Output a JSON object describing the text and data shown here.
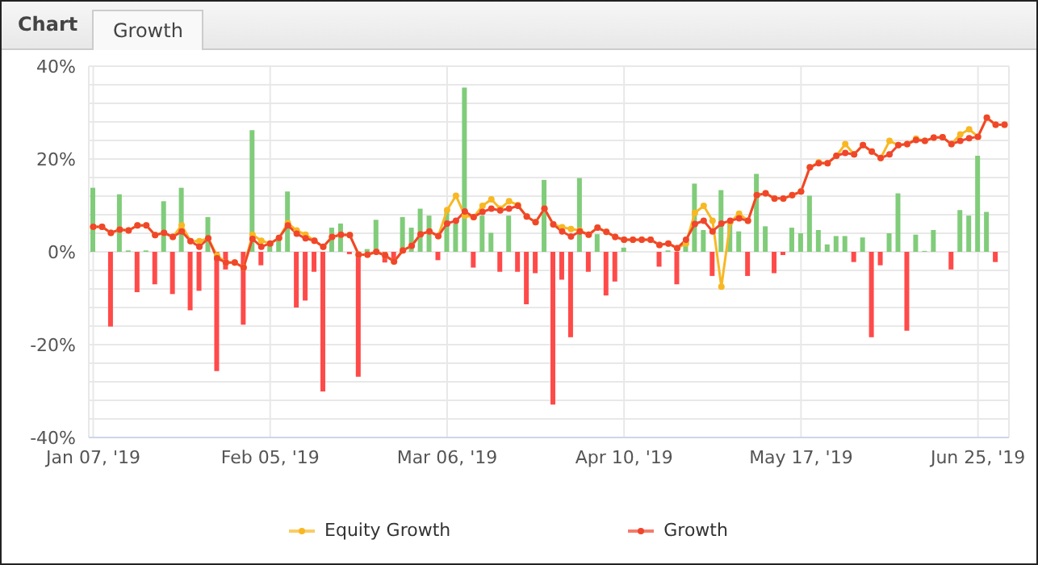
{
  "chart_data": {
    "type": "line",
    "title": "Chart",
    "subtitle": "Growth",
    "categories": [
      "Jan 07, '19",
      null,
      null,
      null,
      null,
      null,
      null,
      null,
      null,
      null,
      null,
      null,
      null,
      null,
      null,
      null,
      null,
      null,
      null,
      null,
      "Feb 05, '19",
      null,
      null,
      null,
      null,
      null,
      null,
      null,
      null,
      null,
      null,
      null,
      null,
      null,
      null,
      null,
      null,
      null,
      null,
      null,
      "Mar 06, '19",
      null,
      null,
      null,
      null,
      null,
      null,
      null,
      null,
      null,
      null,
      null,
      null,
      null,
      null,
      null,
      null,
      null,
      null,
      null,
      "Apr 10, '19",
      null,
      null,
      null,
      null,
      null,
      null,
      null,
      null,
      null,
      null,
      null,
      null,
      null,
      null,
      null,
      null,
      null,
      null,
      null,
      "May 17, '19",
      null,
      null,
      null,
      null,
      null,
      null,
      null,
      null,
      null,
      null,
      null,
      null,
      null,
      null,
      null,
      null,
      null,
      null,
      null,
      "Jun 25, '19",
      null,
      null,
      null
    ],
    "series": [
      {
        "type": "bar",
        "values": [
          13.8,
          null,
          -16.1,
          12.4,
          0.3,
          -8.7,
          0.3,
          -7.0,
          10.9,
          -9.1,
          13.8,
          -12.6,
          -8.4,
          7.5,
          -25.7,
          -3.8,
          null,
          -15.7,
          26.2,
          -2.9,
          1.8,
          2.6,
          13.0,
          -12.0,
          -10.5,
          -4.3,
          -30.1,
          5.2,
          6.1,
          -0.5,
          -26.9,
          0.6,
          6.9,
          -2.3,
          -1.7,
          7.5,
          5.2,
          9.3,
          7.8,
          -1.8,
          9.0,
          6.1,
          35.4,
          -3.4,
          7.8,
          4.1,
          -4.3,
          7.8,
          -4.3,
          -11.3,
          -4.6,
          15.5,
          -32.9,
          -6.0,
          -18.4,
          15.9,
          -4.3,
          3.8,
          -9.4,
          -6.4,
          0.9,
          null,
          null,
          null,
          -3.2,
          0.3,
          -7.0,
          2.1,
          14.7,
          4.7,
          -5.2,
          13.3,
          6.7,
          4.4,
          -5.2,
          16.8,
          5.5,
          -4.6,
          -0.7,
          5.2,
          4.0,
          12.1,
          4.7,
          1.6,
          3.4,
          3.4,
          -2.2,
          3.1,
          -18.4,
          -2.9,
          4.0,
          12.6,
          -17.0,
          3.7,
          0.2,
          4.7,
          null,
          -3.8,
          9.0,
          7.8,
          20.7,
          8.6,
          -2.2,
          null
        ],
        "colors": [
          "#80cc7a",
          null,
          "#ff4a4a",
          "#80cc7a",
          "#80cc7a",
          "#ff4a4a",
          "#80cc7a",
          "#ff4a4a",
          "#80cc7a",
          "#ff4a4a",
          "#80cc7a",
          "#ff4a4a",
          "#ff4a4a",
          "#80cc7a",
          "#ff4a4a",
          "#ff4a4a",
          null,
          "#ff4a4a",
          "#80cc7a",
          "#ff4a4a",
          "#80cc7a",
          "#80cc7a",
          "#80cc7a",
          "#ff4a4a",
          "#ff4a4a",
          "#ff4a4a",
          "#ff4a4a",
          "#80cc7a",
          "#80cc7a",
          "#ff4a4a",
          "#ff4a4a",
          "#80cc7a",
          "#80cc7a",
          "#ff4a4a",
          "#ff4a4a",
          "#80cc7a",
          "#80cc7a",
          "#80cc7a",
          "#80cc7a",
          "#ff4a4a",
          "#80cc7a",
          "#80cc7a",
          "#80cc7a",
          "#ff4a4a",
          "#80cc7a",
          "#80cc7a",
          "#ff4a4a",
          "#80cc7a",
          "#ff4a4a",
          "#ff4a4a",
          "#ff4a4a",
          "#80cc7a",
          "#ff4a4a",
          "#ff4a4a",
          "#ff4a4a",
          "#80cc7a",
          "#ff4a4a",
          "#80cc7a",
          "#ff4a4a",
          "#ff4a4a",
          "#80cc7a",
          null,
          null,
          null,
          "#ff4a4a",
          "#80cc7a",
          "#ff4a4a",
          "#80cc7a",
          "#80cc7a",
          "#80cc7a",
          "#ff4a4a",
          "#80cc7a",
          "#80cc7a",
          "#80cc7a",
          "#ff4a4a",
          "#80cc7a",
          "#80cc7a",
          "#ff4a4a",
          "#ff4a4a",
          "#80cc7a",
          "#80cc7a",
          "#80cc7a",
          "#80cc7a",
          "#80cc7a",
          "#80cc7a",
          "#80cc7a",
          "#ff4a4a",
          "#80cc7a",
          "#ff4a4a",
          "#ff4a4a",
          "#80cc7a",
          "#80cc7a",
          "#ff4a4a",
          "#80cc7a",
          "#80cc7a",
          "#80cc7a",
          null,
          "#ff4a4a",
          "#80cc7a",
          "#80cc7a",
          "#80cc7a",
          "#80cc7a",
          "#ff4a4a",
          null
        ]
      },
      {
        "name": "Equity Growth",
        "color": "#f7b824",
        "values": [
          5.4,
          5.4,
          4.1,
          4.8,
          4.6,
          5.7,
          5.7,
          3.6,
          4.1,
          3.2,
          5.7,
          2.3,
          2.3,
          2.9,
          -0.8,
          -2.3,
          -2.3,
          -3.4,
          3.7,
          2.4,
          1.8,
          3.0,
          6.2,
          4.6,
          3.7,
          2.4,
          1.1,
          3.2,
          3.7,
          3.6,
          -0.6,
          -0.6,
          0,
          -0.8,
          -2.1,
          0.3,
          1.3,
          3.8,
          4.4,
          3.4,
          9.0,
          12.1,
          7.8,
          7.5,
          9.9,
          11.3,
          9.3,
          10.9,
          10.1,
          7.6,
          6.4,
          9.3,
          5.9,
          5.3,
          4.9,
          4.6,
          3.7,
          5.2,
          4.3,
          3.2,
          2.6,
          2.6,
          2.6,
          2.6,
          1.5,
          1.8,
          0.8,
          1.8,
          8.4,
          9.9,
          6.7,
          -7.5,
          6.4,
          8.2,
          6.7,
          12.2,
          12.6,
          11.5,
          11.5,
          12.2,
          13.0,
          18.2,
          19.3,
          19.1,
          20.7,
          23.2,
          21.0,
          23.0,
          21.6,
          20.2,
          23.9,
          23.0,
          23.2,
          24.4,
          23.9,
          24.6,
          24.7,
          23.2,
          25.3,
          26.4,
          24.8,
          28.9,
          27.4,
          27.4
        ]
      },
      {
        "name": "Growth",
        "color": "#f0462d",
        "values": [
          5.4,
          5.4,
          4.1,
          4.8,
          4.6,
          5.7,
          5.7,
          3.6,
          4.1,
          3.2,
          4.4,
          2.3,
          1.1,
          2.9,
          -1.4,
          -2.3,
          -2.3,
          -3.4,
          2.8,
          1.1,
          1.8,
          3.0,
          5.7,
          3.9,
          2.9,
          2.4,
          1.1,
          3.2,
          3.7,
          3.6,
          -0.6,
          -0.6,
          0,
          -0.8,
          -2.1,
          0.3,
          1.3,
          3.8,
          4.4,
          3.4,
          6.1,
          6.7,
          8.7,
          7.5,
          8.6,
          9.3,
          8.9,
          9.3,
          9.9,
          7.6,
          6.4,
          9.3,
          5.9,
          4.4,
          3.3,
          4.4,
          3.7,
          5.2,
          4.3,
          3.2,
          2.6,
          2.6,
          2.6,
          2.6,
          1.5,
          1.8,
          0.8,
          2.6,
          6.0,
          6.7,
          4.4,
          6.1,
          6.7,
          7.2,
          6.7,
          12.2,
          12.6,
          11.5,
          11.5,
          12.2,
          13.0,
          18.2,
          19.1,
          19.1,
          20.7,
          21.3,
          21.0,
          23.0,
          21.6,
          20.2,
          21.0,
          23.0,
          23.2,
          24.1,
          23.9,
          24.6,
          24.7,
          23.2,
          23.9,
          24.5,
          24.8,
          28.9,
          27.4,
          27.4
        ]
      }
    ],
    "ylim": [
      -40,
      40
    ],
    "yticks": [
      {
        "value": -40,
        "label": "-40%"
      },
      {
        "value": -36,
        "label": null
      },
      {
        "value": -32,
        "label": null
      },
      {
        "value": -28,
        "label": null
      },
      {
        "value": -24,
        "label": null
      },
      {
        "value": -20,
        "label": "-20%"
      },
      {
        "value": -16,
        "label": null
      },
      {
        "value": -12,
        "label": null
      },
      {
        "value": -8,
        "label": null
      },
      {
        "value": -4,
        "label": null
      },
      {
        "value": 0,
        "label": "0%"
      },
      {
        "value": 4,
        "label": null
      },
      {
        "value": 8,
        "label": null
      },
      {
        "value": 12,
        "label": null
      },
      {
        "value": 16,
        "label": null
      },
      {
        "value": 20,
        "label": "20%"
      },
      {
        "value": 24,
        "label": null
      },
      {
        "value": 28,
        "label": null
      },
      {
        "value": 32,
        "label": null
      },
      {
        "value": 36,
        "label": null
      },
      {
        "value": 40,
        "label": "40%"
      }
    ],
    "grid": true,
    "legend": "bottom",
    "marker": "circle",
    "line_style": "solid"
  }
}
